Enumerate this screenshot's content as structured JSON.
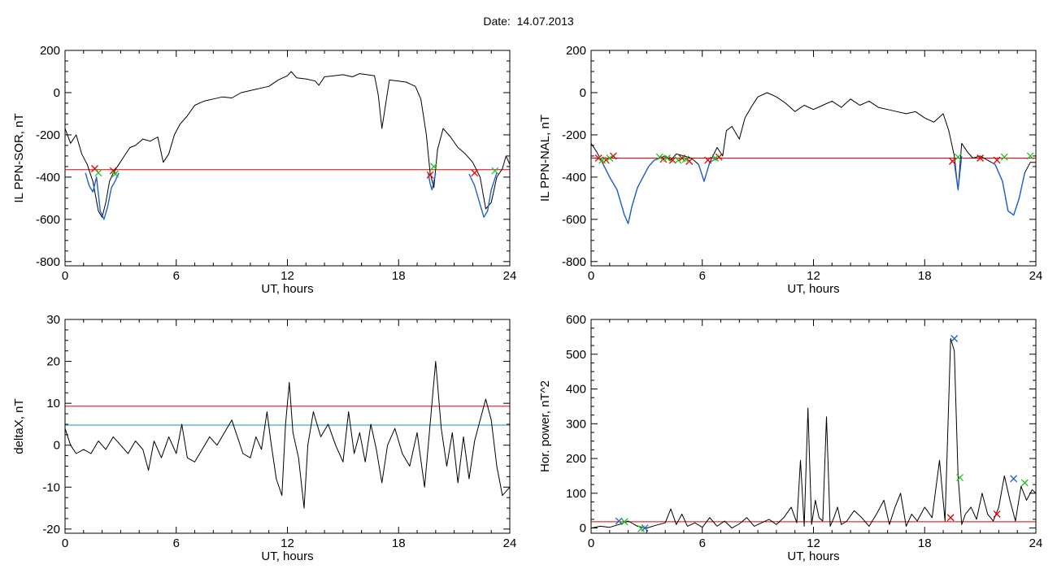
{
  "header": {
    "date_label": "Date:",
    "date_value": "14.07.2013"
  },
  "colors": {
    "black": "#000000",
    "red": "#e00000",
    "blue": "#1f5fd0",
    "cyan": "#1890b8",
    "green": "#22c022"
  },
  "chart_data": [
    {
      "type": "line",
      "ylabel": "IL PPN-SOR, nT",
      "xlabel": "UT, hours",
      "xlim": [
        0,
        24
      ],
      "ylim": [
        -820,
        200
      ],
      "xticks": [
        0,
        6,
        12,
        18,
        24
      ],
      "yticks": [
        200,
        0,
        -200,
        -400,
        -600,
        -800
      ],
      "threshold": -365,
      "series": [
        {
          "color": "black",
          "x": [
            0,
            0.3,
            0.6,
            0.9,
            1.2,
            1.5,
            1.8,
            2.0,
            2.2,
            2.4,
            2.6,
            2.9,
            3.2,
            3.5,
            3.8,
            4.2,
            4.6,
            5.0,
            5.3,
            5.6,
            5.9,
            6.2,
            6.6,
            7.0,
            7.5,
            8.0,
            8.5,
            9.0,
            9.5,
            10.0,
            10.5,
            11.0,
            11.5,
            12.0,
            12.2,
            12.5,
            13.0,
            13.5,
            13.7,
            14.0,
            14.5,
            15.0,
            15.5,
            15.9,
            16.3,
            16.7,
            16.9,
            17.1,
            17.5,
            18.0,
            18.4,
            18.9,
            19.2,
            19.5,
            19.7,
            19.9,
            20.1,
            20.4,
            20.8,
            21.2,
            21.6,
            22.0,
            22.4,
            22.7,
            23.0,
            23.3,
            23.6,
            23.8,
            24.0
          ],
          "y": [
            -170,
            -240,
            -200,
            -290,
            -340,
            -420,
            -560,
            -590,
            -520,
            -420,
            -380,
            -340,
            -300,
            -260,
            -250,
            -220,
            -230,
            -210,
            -330,
            -290,
            -200,
            -150,
            -110,
            -60,
            -40,
            -30,
            -20,
            -25,
            0,
            10,
            20,
            30,
            60,
            80,
            100,
            70,
            65,
            55,
            35,
            75,
            80,
            85,
            75,
            90,
            85,
            80,
            -10,
            -170,
            60,
            55,
            50,
            30,
            -30,
            -200,
            -380,
            -450,
            -270,
            -170,
            -210,
            -260,
            -290,
            -330,
            -400,
            -550,
            -520,
            -400,
            -360,
            -300,
            -340
          ]
        },
        {
          "color": "blue",
          "x": [
            1.1,
            1.3,
            1.5,
            1.7,
            1.9,
            2.1,
            2.3,
            2.5,
            2.7,
            2.9
          ],
          "y": [
            -380,
            -440,
            -470,
            -400,
            -560,
            -600,
            -540,
            -450,
            -420,
            -380
          ]
        },
        {
          "color": "blue",
          "x": [
            19.6,
            19.7,
            19.8,
            19.9,
            20.0
          ],
          "y": [
            -380,
            -430,
            -460,
            -420,
            -380
          ]
        },
        {
          "color": "blue",
          "x": [
            21.8,
            22.1,
            22.4,
            22.6,
            22.8,
            23.0,
            23.3
          ],
          "y": [
            -385,
            -440,
            -530,
            -590,
            -560,
            -460,
            -380
          ]
        }
      ],
      "markers": {
        "red": [
          [
            1.6,
            -360
          ],
          [
            2.6,
            -370
          ],
          [
            19.7,
            -390
          ],
          [
            22.1,
            -380
          ]
        ],
        "green": [
          [
            1.8,
            -380
          ],
          [
            2.7,
            -385
          ],
          [
            19.9,
            -350
          ],
          [
            23.2,
            -370
          ]
        ]
      }
    },
    {
      "type": "line",
      "ylabel": "IL PPN-NAL, nT",
      "xlabel": "UT, hours",
      "xlim": [
        0,
        24
      ],
      "ylim": [
        -820,
        200
      ],
      "xticks": [
        0,
        6,
        12,
        18,
        24
      ],
      "yticks": [
        200,
        0,
        -200,
        -400,
        -600,
        -800
      ],
      "threshold": -310,
      "series": [
        {
          "color": "black",
          "x": [
            0,
            0.3,
            0.6,
            1.0,
            1.4,
            1.8,
            2.0,
            2.2,
            2.5,
            2.8,
            3.1,
            3.4,
            3.7,
            4.0,
            4.3,
            4.6,
            5.0,
            5.4,
            5.8,
            6.1,
            6.4,
            6.8,
            7.1,
            7.3,
            7.6,
            8.0,
            8.3,
            8.7,
            9.0,
            9.5,
            10.0,
            10.5,
            11.0,
            11.5,
            12.0,
            12.5,
            13.0,
            13.5,
            14.0,
            14.5,
            15.0,
            15.5,
            16.0,
            16.5,
            17.0,
            17.5,
            18.0,
            18.5,
            19.0,
            19.3,
            19.6,
            19.8,
            20.0,
            20.3,
            20.6,
            21.0,
            21.4,
            21.8,
            22.2,
            22.5,
            22.8,
            23.1,
            23.4,
            23.7,
            24.0
          ],
          "y": [
            -240,
            -280,
            -330,
            -400,
            -460,
            -580,
            -620,
            -540,
            -450,
            -400,
            -350,
            -320,
            -310,
            -300,
            -320,
            -290,
            -300,
            -310,
            -340,
            -420,
            -330,
            -260,
            -300,
            -180,
            -160,
            -220,
            -120,
            -60,
            -20,
            0,
            -20,
            -50,
            -90,
            -60,
            -80,
            -60,
            -40,
            -70,
            -30,
            -60,
            -40,
            -70,
            -80,
            -90,
            -100,
            -90,
            -120,
            -140,
            -100,
            -180,
            -300,
            -460,
            -240,
            -280,
            -310,
            -300,
            -320,
            -340,
            -420,
            -560,
            -580,
            -500,
            -380,
            -330,
            -330
          ]
        },
        {
          "color": "blue",
          "x": [
            0.6,
            1.0,
            1.4,
            1.8,
            2.0,
            2.2,
            2.5,
            2.8,
            3.1,
            3.4,
            3.7
          ],
          "y": [
            -330,
            -400,
            -460,
            -580,
            -620,
            -540,
            -450,
            -400,
            -350,
            -320,
            -310
          ]
        },
        {
          "color": "blue",
          "x": [
            5.8,
            6.1,
            6.4,
            6.8
          ],
          "y": [
            -340,
            -420,
            -330,
            -310
          ]
        },
        {
          "color": "blue",
          "x": [
            19.6,
            19.8,
            20.0
          ],
          "y": [
            -330,
            -460,
            -300
          ]
        },
        {
          "color": "blue",
          "x": [
            21.6,
            21.8,
            22.2,
            22.5,
            22.8,
            23.1,
            23.4
          ],
          "y": [
            -330,
            -340,
            -420,
            -560,
            -580,
            -500,
            -380
          ]
        }
      ],
      "markers": {
        "red": [
          [
            0.4,
            -310
          ],
          [
            0.8,
            -320
          ],
          [
            1.2,
            -300
          ],
          [
            3.9,
            -315
          ],
          [
            4.4,
            -320
          ],
          [
            4.9,
            -310
          ],
          [
            5.3,
            -325
          ],
          [
            6.3,
            -320
          ],
          [
            6.9,
            -305
          ],
          [
            19.5,
            -325
          ],
          [
            21.0,
            -310
          ],
          [
            21.9,
            -320
          ]
        ],
        "green": [
          [
            0.6,
            -320
          ],
          [
            1.0,
            -310
          ],
          [
            3.7,
            -305
          ],
          [
            4.1,
            -310
          ],
          [
            4.7,
            -320
          ],
          [
            5.1,
            -315
          ],
          [
            6.7,
            -310
          ],
          [
            19.8,
            -305
          ],
          [
            22.3,
            -305
          ],
          [
            23.7,
            -300
          ]
        ]
      }
    },
    {
      "type": "line",
      "ylabel": "deltaX, nT",
      "xlabel": "UT, hours",
      "xlim": [
        0,
        24
      ],
      "ylim": [
        -21,
        30
      ],
      "xticks": [
        0,
        6,
        12,
        18,
        24
      ],
      "yticks": [
        30,
        20,
        10,
        0,
        -10,
        -20
      ],
      "hlines": [
        {
          "color": "red",
          "y": 9.3
        },
        {
          "color": "cyan",
          "y": 4.8
        }
      ],
      "series": [
        {
          "color": "black",
          "x": [
            0,
            0.3,
            0.6,
            1.0,
            1.4,
            1.8,
            2.2,
            2.6,
            3.0,
            3.4,
            3.8,
            4.2,
            4.5,
            4.8,
            5.2,
            5.6,
            6.0,
            6.3,
            6.6,
            7.0,
            7.4,
            7.8,
            8.2,
            8.6,
            9.0,
            9.3,
            9.6,
            10.0,
            10.3,
            10.6,
            10.9,
            11.1,
            11.4,
            11.7,
            11.9,
            12.1,
            12.3,
            12.6,
            12.9,
            13.1,
            13.4,
            13.8,
            14.2,
            14.6,
            15.0,
            15.3,
            15.6,
            15.9,
            16.2,
            16.5,
            16.8,
            17.1,
            17.4,
            17.8,
            18.2,
            18.6,
            19.0,
            19.4,
            19.7,
            20.0,
            20.3,
            20.6,
            20.9,
            21.2,
            21.5,
            21.8,
            22.1,
            22.4,
            22.7,
            23.0,
            23.3,
            23.6,
            24.0
          ],
          "y": [
            4,
            0,
            -2,
            -1,
            -2,
            1,
            -1,
            2,
            0,
            -2,
            1,
            -1,
            -6,
            1,
            -3,
            2,
            -2,
            5,
            -3,
            -4,
            -1,
            2,
            0,
            3,
            6,
            2,
            -2,
            -3,
            2,
            -1,
            8,
            1,
            -8,
            -12,
            5,
            15,
            3,
            -3,
            -15,
            0,
            8,
            2,
            5,
            0,
            -4,
            8,
            -2,
            3,
            -4,
            5,
            -1,
            -9,
            0,
            4,
            -2,
            -5,
            3,
            -10,
            5,
            20,
            4,
            -5,
            3,
            -9,
            2,
            -8,
            1,
            6,
            11,
            6,
            -5,
            -12,
            -10
          ]
        }
      ]
    },
    {
      "type": "line",
      "ylabel": "Hor. power, nT^2",
      "xlabel": "UT, hours",
      "xlim": [
        0,
        24
      ],
      "ylim": [
        -15,
        600
      ],
      "xticks": [
        0,
        6,
        12,
        18,
        24
      ],
      "yticks": [
        600,
        500,
        400,
        300,
        200,
        100,
        0
      ],
      "threshold": 18,
      "series": [
        {
          "color": "black",
          "x": [
            0,
            0.5,
            1.0,
            1.5,
            2.0,
            2.5,
            3.0,
            3.5,
            4.0,
            4.3,
            4.6,
            4.9,
            5.2,
            5.6,
            6.0,
            6.4,
            6.8,
            7.2,
            7.6,
            8.0,
            8.4,
            8.8,
            9.2,
            9.6,
            10.0,
            10.4,
            10.8,
            11.1,
            11.3,
            11.5,
            11.7,
            11.9,
            12.1,
            12.3,
            12.5,
            12.7,
            12.9,
            13.1,
            13.3,
            13.5,
            13.8,
            14.2,
            14.6,
            15.0,
            15.4,
            15.8,
            16.1,
            16.4,
            16.7,
            17.0,
            17.3,
            17.6,
            18.0,
            18.4,
            18.8,
            19.1,
            19.4,
            19.6,
            19.8,
            20.0,
            20.2,
            20.5,
            20.8,
            21.1,
            21.4,
            21.7,
            22.0,
            22.3,
            22.6,
            22.9,
            23.2,
            23.5,
            23.8,
            24.0
          ],
          "y": [
            0,
            5,
            2,
            10,
            20,
            5,
            0,
            8,
            15,
            55,
            10,
            40,
            5,
            15,
            2,
            30,
            5,
            20,
            0,
            12,
            30,
            5,
            15,
            25,
            10,
            30,
            60,
            15,
            195,
            5,
            345,
            10,
            80,
            30,
            20,
            320,
            5,
            30,
            60,
            10,
            20,
            50,
            30,
            5,
            40,
            80,
            10,
            60,
            100,
            5,
            40,
            20,
            60,
            30,
            195,
            20,
            545,
            510,
            150,
            10,
            40,
            60,
            25,
            100,
            40,
            20,
            60,
            150,
            80,
            20,
            120,
            80,
            110,
            100
          ]
        }
      ],
      "markers": {
        "blue": [
          [
            1.5,
            20
          ],
          [
            2.9,
            0
          ],
          [
            19.6,
            545
          ],
          [
            22.8,
            142
          ]
        ],
        "green": [
          [
            1.8,
            18
          ],
          [
            2.7,
            -2
          ],
          [
            19.9,
            145
          ],
          [
            23.4,
            130
          ]
        ],
        "red": [
          [
            19.4,
            30
          ],
          [
            21.9,
            40
          ]
        ]
      }
    }
  ]
}
